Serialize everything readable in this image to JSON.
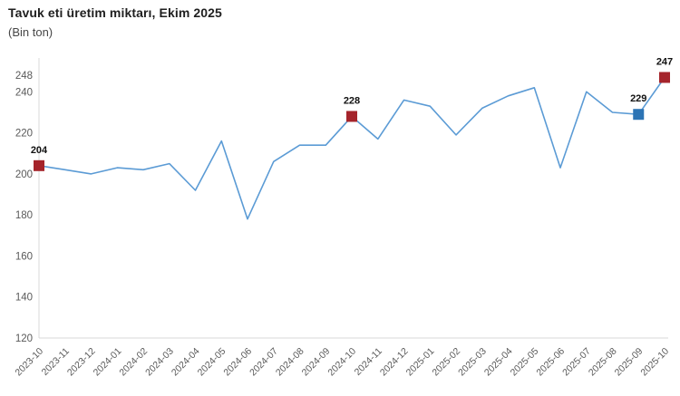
{
  "header": {
    "title": "Tavuk eti üretim miktarı, Ekim 2025",
    "subtitle": "(Bin ton)"
  },
  "chart_data": {
    "type": "line",
    "title": "Tavuk eti üretim miktarı, Ekim 2025",
    "subtitle": "(Bin ton)",
    "unit": "Bin ton",
    "x": [
      "2023-10",
      "2023-11",
      "2023-12",
      "2024-01",
      "2024-02",
      "2024-03",
      "2024-04",
      "2024-05",
      "2024-06",
      "2024-07",
      "2024-08",
      "2024-09",
      "2024-10",
      "2024-11",
      "2024-12",
      "2025-01",
      "2025-02",
      "2025-03",
      "2025-04",
      "2025-05",
      "2025-06",
      "2025-07",
      "2025-08",
      "2025-09",
      "2025-10"
    ],
    "values": [
      204,
      202,
      200,
      203,
      202,
      205,
      192,
      216,
      178,
      206,
      214,
      214,
      228,
      217,
      236,
      233,
      219,
      232,
      238,
      242,
      203,
      240,
      230,
      229,
      247
    ],
    "ylim": [
      120,
      248
    ],
    "yticks": [
      120,
      140,
      160,
      180,
      200,
      220,
      240,
      248
    ],
    "grid": false,
    "legend": "none",
    "line_color": "#5B9BD5",
    "axis_line_color": "#d9d9d9",
    "tick_label_color": "#595959",
    "data_label_color": "#111111",
    "annotations": [
      {
        "x": "2023-10",
        "value": 204,
        "label": "204",
        "marker_color": "#A5242B"
      },
      {
        "x": "2024-10",
        "value": 228,
        "label": "228",
        "marker_color": "#A5242B"
      },
      {
        "x": "2025-09",
        "value": 229,
        "label": "229",
        "marker_color": "#2C74B5"
      },
      {
        "x": "2025-10",
        "value": 247,
        "label": "247",
        "marker_color": "#A5242B"
      }
    ]
  }
}
